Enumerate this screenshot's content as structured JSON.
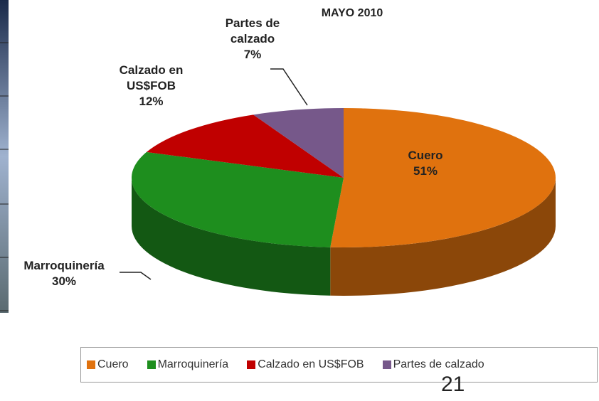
{
  "chart_data": {
    "type": "pie",
    "title": "MAYO 2010",
    "categories": [
      "Cuero",
      "Marroquinería",
      "Calzado en US$FOB",
      "Partes de calzado"
    ],
    "values": [
      51,
      30,
      12,
      7
    ],
    "value_labels": [
      "51%",
      "30%",
      "12%",
      "7%"
    ],
    "colors": [
      "#e0720e",
      "#1e8e1e",
      "#c00000",
      "#76588a"
    ],
    "legend": "bottom"
  },
  "slide_number": "21"
}
